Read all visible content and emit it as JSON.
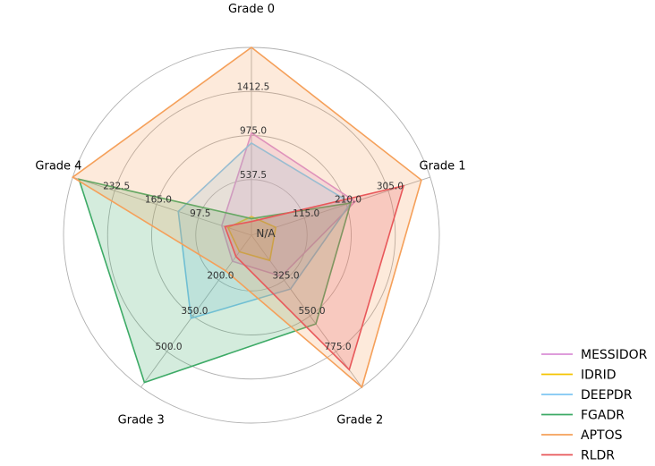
{
  "chart_data": {
    "type": "radar",
    "axes": [
      "Grade 0",
      "Grade 1",
      "Grade 2",
      "Grade 3",
      "Grade 4"
    ],
    "center_label": "N/A",
    "rings": 4,
    "axis_ticks": [
      [
        "537.5",
        "975.0",
        "1412.5"
      ],
      [
        "115.0",
        "210.0",
        "305.0"
      ],
      [
        "325.0",
        "550.0",
        "775.0"
      ],
      [
        "200.0",
        "350.0",
        "500.0"
      ],
      [
        "97.5",
        "165.0",
        "232.5"
      ]
    ],
    "axis_ranges": [
      [
        100,
        1850
      ],
      [
        20,
        400
      ],
      [
        100,
        1000
      ],
      [
        50,
        650
      ],
      [
        30,
        300
      ]
    ],
    "series": [
      {
        "name": "MESSIDOR",
        "color": "#d98fd6",
        "values": [
          1000,
          230,
          300,
          120,
          60
        ]
      },
      {
        "name": "IDRID",
        "color": "#f5c400",
        "values": [
          170,
          50,
          200,
          80,
          50
        ]
      },
      {
        "name": "DEEPDR",
        "color": "#7fc6f2",
        "values": [
          900,
          220,
          380,
          360,
          130
        ]
      },
      {
        "name": "FGADR",
        "color": "#3daa66",
        "values": [
          150,
          220,
          600,
          630,
          290
        ]
      },
      {
        "name": "APTOS",
        "color": "#f5a05a",
        "values": [
          1850,
          380,
          1000,
          160,
          300
        ]
      },
      {
        "name": "RLDR",
        "color": "#e8585a",
        "values": [
          120,
          340,
          890,
          100,
          55
        ]
      }
    ]
  }
}
